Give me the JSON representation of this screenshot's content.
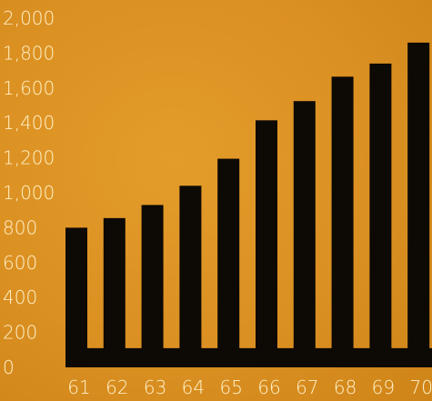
{
  "chart_data": {
    "type": "bar",
    "categories": [
      "61",
      "62",
      "63",
      "64",
      "65",
      "66",
      "67",
      "68",
      "69",
      "70"
    ],
    "values": [
      800,
      855,
      930,
      1040,
      1195,
      1415,
      1525,
      1665,
      1740,
      1860
    ],
    "ylim": [
      0,
      2000
    ],
    "yticks": [
      "0",
      "200",
      "400",
      "600",
      "800",
      "1,000",
      "1,200",
      "1,400",
      "1,600",
      "1,800",
      "2,000"
    ],
    "xlabel": "",
    "ylabel": "",
    "title": "",
    "grid": false,
    "legend": "none",
    "colors": {
      "background": "#dd9225",
      "bar": "#0d0905",
      "text": "#fff2c9"
    }
  }
}
